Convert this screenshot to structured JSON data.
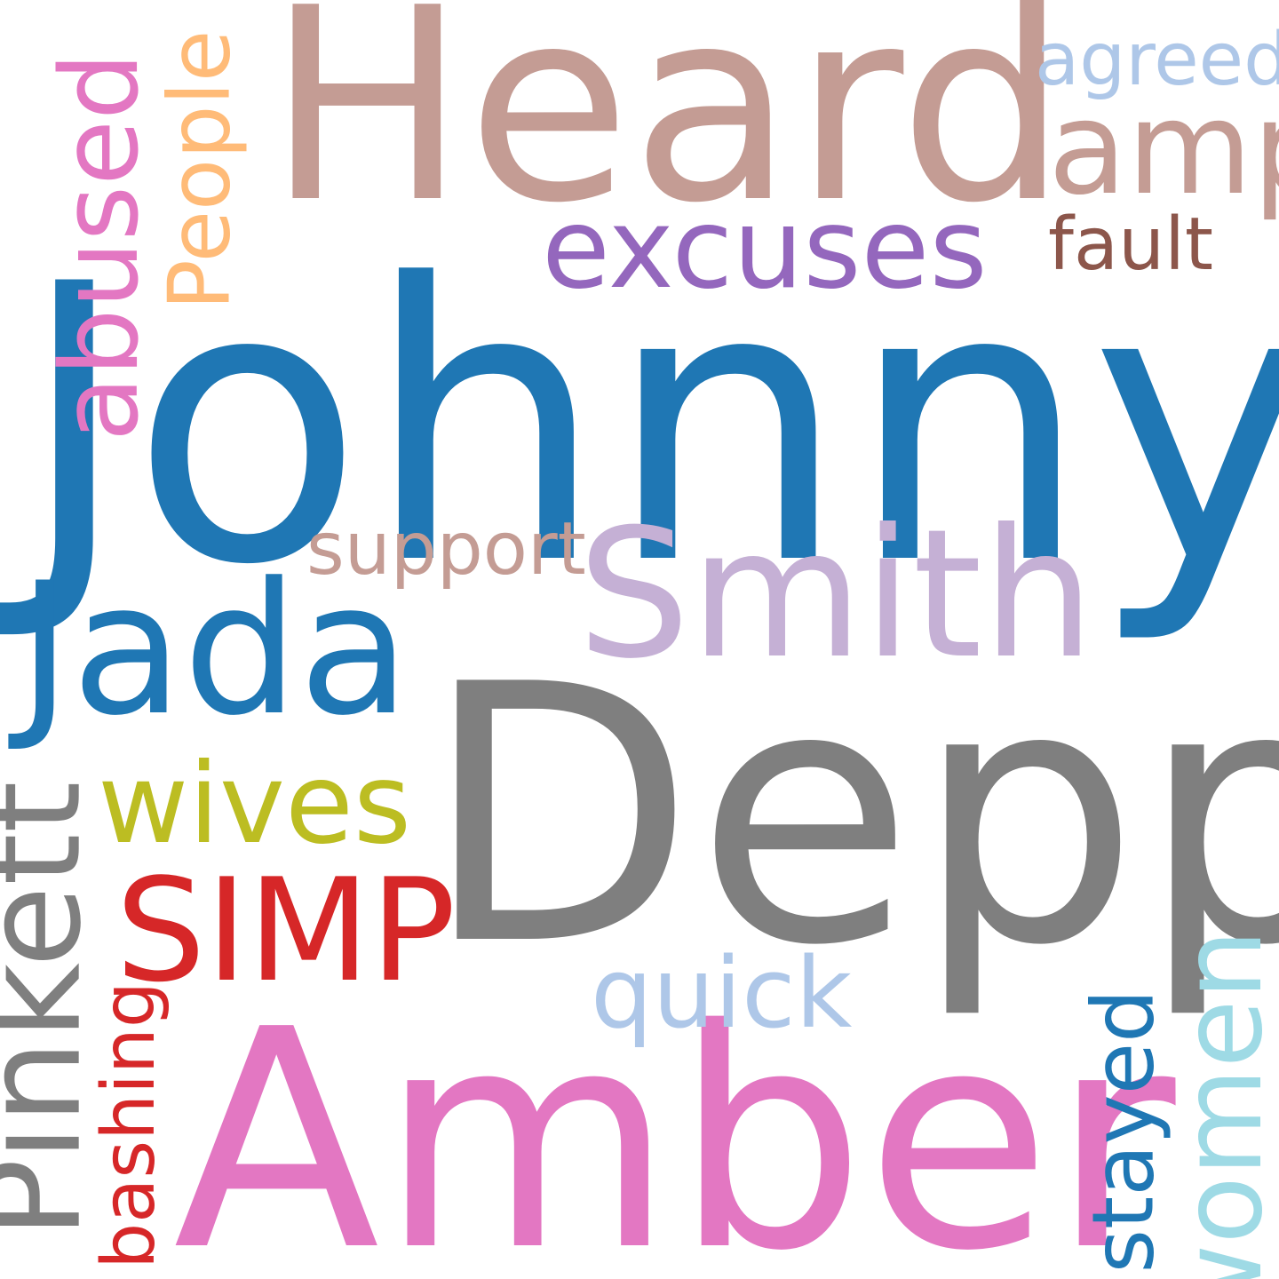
{
  "words": {
    "heard": {
      "text": "Heard",
      "color": "#c49c94"
    },
    "johnny": {
      "text": "Johnny",
      "color": "#1f77b4"
    },
    "depp": {
      "text": "Depp",
      "color": "#7f7f7f"
    },
    "amber": {
      "text": "Amber",
      "color": "#e377c2"
    },
    "smith": {
      "text": "Smith",
      "color": "#c5b0d5"
    },
    "jada": {
      "text": "Jada",
      "color": "#1f77b4"
    },
    "excuses": {
      "text": "excuses",
      "color": "#9467bd"
    },
    "amp": {
      "text": "amp",
      "color": "#c49c94"
    },
    "agreed": {
      "text": "agreed",
      "color": "#aec7e8"
    },
    "fault": {
      "text": "fault",
      "color": "#8c564b"
    },
    "support": {
      "text": "support",
      "color": "#c49c94"
    },
    "wives": {
      "text": "wives",
      "color": "#bcbd22"
    },
    "simp": {
      "text": "SIMP",
      "color": "#d62728"
    },
    "quick": {
      "text": "quick",
      "color": "#aec7e8"
    },
    "abused": {
      "text": "abused",
      "color": "#e377c2"
    },
    "people": {
      "text": "People",
      "color": "#ffbb78"
    },
    "pinkett": {
      "text": "Pinkett",
      "color": "#7f7f7f"
    },
    "bashing": {
      "text": "bashing",
      "color": "#d62728"
    },
    "stayed": {
      "text": "stayed",
      "color": "#1f77b4"
    },
    "women": {
      "text": "women",
      "color": "#9edae5"
    }
  }
}
